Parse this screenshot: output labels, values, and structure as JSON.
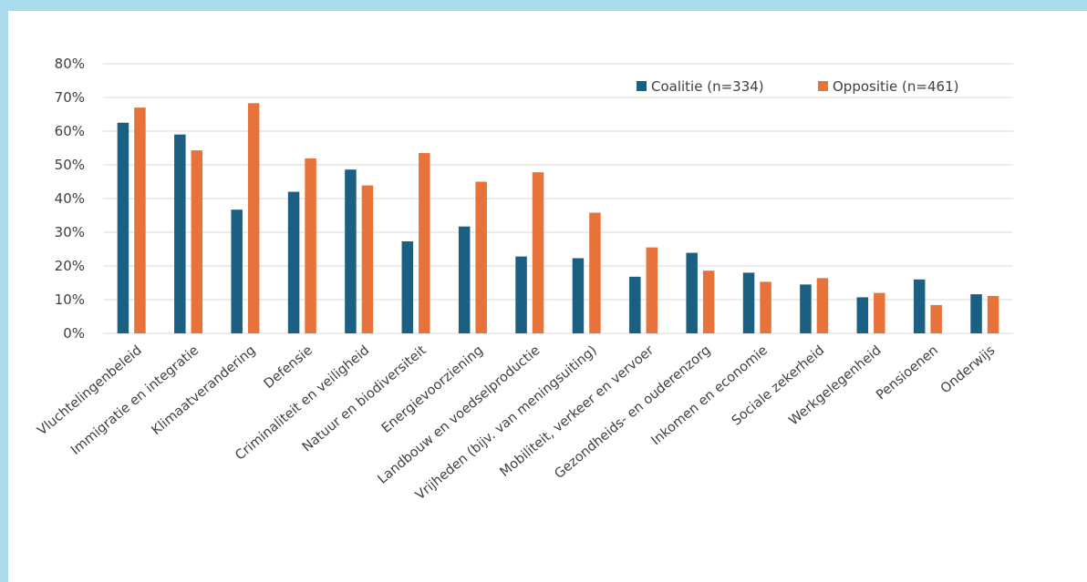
{
  "chart_data": {
    "type": "bar",
    "title": "",
    "xlabel": "",
    "ylabel": "",
    "ylim": [
      0,
      80
    ],
    "y_ticks": [
      "0%",
      "10%",
      "20%",
      "30%",
      "40%",
      "50%",
      "60%",
      "70%",
      "80%"
    ],
    "grid": true,
    "legend_position": "top-right",
    "categories": [
      "Vluchtelingenbeleid",
      "Immigratie en integratie",
      "Klimaatverandering",
      "Defensie",
      "Criminaliteit en veiligheid",
      "Natuur en biodiversiteit",
      "Energievoorziening",
      "Landbouw en voedselproductie",
      "Vrijheden (bijv. van meningsuiting)",
      "Mobiliteit, verkeer en vervoer",
      "Gezondheids- en ouderenzorg",
      "Inkomen en economie",
      "Sociale zekerheid",
      "Werkgelegenheid",
      "Pensioenen",
      "Onderwijs"
    ],
    "series": [
      {
        "name": "Coalitie (n=334)",
        "color": "#1b5f82",
        "values": [
          62.5,
          59,
          36.7,
          42,
          48.6,
          27.3,
          31.7,
          22.8,
          22.3,
          16.8,
          23.9,
          18,
          14.5,
          10.7,
          16,
          11.6
        ]
      },
      {
        "name": "Oppositie (n=461)",
        "color": "#e8733a",
        "values": [
          67,
          54.3,
          68.3,
          51.9,
          43.9,
          53.5,
          45,
          47.8,
          35.8,
          25.5,
          18.6,
          15.3,
          16.4,
          12,
          8.4,
          11.1
        ]
      }
    ]
  },
  "colors": {
    "border": "#a8dcec",
    "panel": "#ffffff",
    "grid": "#d9d9d9",
    "text": "#404040"
  }
}
